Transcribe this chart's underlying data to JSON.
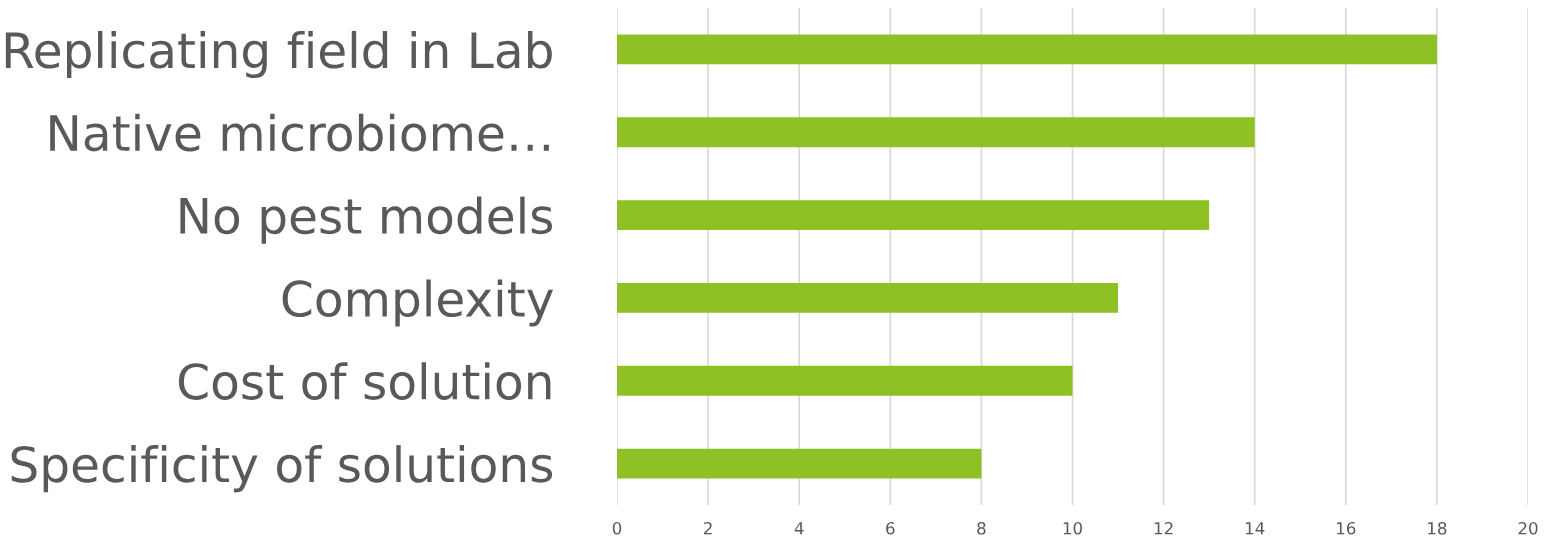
{
  "chart_data": {
    "type": "bar",
    "orientation": "horizontal",
    "categories": [
      "Replicating field in Lab",
      "Native microbiome…",
      "No pest models",
      "Complexity",
      "Cost of solution",
      "Specificity of solutions"
    ],
    "values": [
      18,
      14,
      13,
      11,
      10,
      8
    ],
    "color": "#8dc126",
    "xlim": [
      0,
      20
    ],
    "xticks": [
      0,
      2,
      4,
      6,
      8,
      10,
      12,
      14,
      16,
      18,
      20
    ],
    "grid": "x",
    "legend": false
  }
}
